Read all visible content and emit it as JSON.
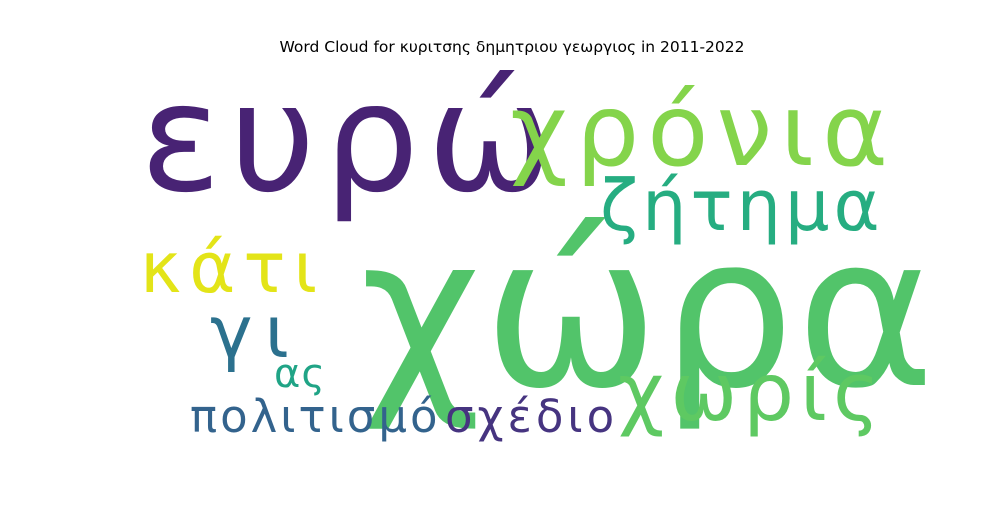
{
  "chart_data": {
    "type": "wordcloud",
    "title": "Word Cloud for κυριτσης δημητριου γεωργιος in 2011-2022",
    "words": [
      {
        "text": "χώρα",
        "weight": 1.0,
        "color": "#52c46a"
      },
      {
        "text": "ευρώ",
        "weight": 0.78,
        "color": "#482374"
      },
      {
        "text": "χρόνια",
        "weight": 0.62,
        "color": "#84d44b"
      },
      {
        "text": "ζήτημα",
        "weight": 0.46,
        "color": "#26ad81"
      },
      {
        "text": "κάτι",
        "weight": 0.43,
        "color": "#e3e418"
      },
      {
        "text": "χωρίς",
        "weight": 0.47,
        "color": "#5ec962"
      },
      {
        "text": "γι",
        "weight": 0.4,
        "color": "#2c718e"
      },
      {
        "text": "πολιτισμό",
        "weight": 0.27,
        "color": "#33638d"
      },
      {
        "text": "σχέδιο",
        "weight": 0.27,
        "color": "#463480"
      },
      {
        "text": "ας",
        "weight": 0.22,
        "color": "#20a486"
      }
    ]
  }
}
